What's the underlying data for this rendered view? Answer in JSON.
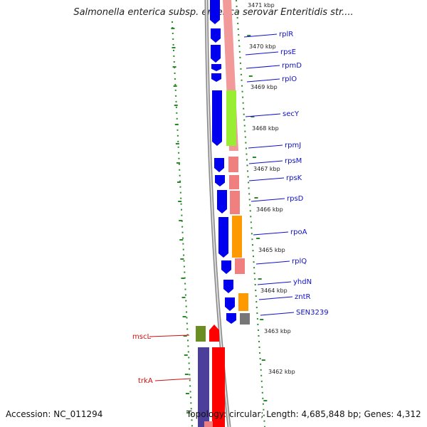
{
  "title": "Salmonella enterica subsp. enterica serovar Enteritidis str....",
  "footer": {
    "accession": "Accession: NC_011294",
    "topology": "Topology: circular; Length: 4,685,848 bp; Genes: 4,312"
  },
  "ticks": [
    "3471 kbp",
    "3470 kbp",
    "3469 kbp",
    "3468 kbp",
    "3467 kbp",
    "3466 kbp",
    "3465 kbp",
    "3464 kbp",
    "3463 kbp",
    "3462 kbp"
  ],
  "genes_forward": [
    {
      "name": "rplR",
      "color": "#f08080"
    },
    {
      "name": "rpsE",
      "color": "#f08080"
    },
    {
      "name": "rpmD",
      "color": "#f08080"
    },
    {
      "name": "rplO",
      "color": "#f08080"
    },
    {
      "name": "secY",
      "color": "#99ee33"
    },
    {
      "name": "rpmJ",
      "color": "#f08080"
    },
    {
      "name": "rpsM",
      "color": "#f08080"
    },
    {
      "name": "rpsK",
      "color": "#f08080"
    },
    {
      "name": "rpsD",
      "color": "#f08080"
    },
    {
      "name": "rpoA",
      "color": "#ff9900"
    },
    {
      "name": "rplQ",
      "color": "#f08080"
    },
    {
      "name": "yhdN",
      "color": "#f08080"
    },
    {
      "name": "zntR",
      "color": "#ff9900"
    },
    {
      "name": "SEN3239",
      "color": "#777777"
    }
  ],
  "genes_reverse": [
    {
      "name": "mscL",
      "color": "#6b8e23"
    },
    {
      "name": "trkA",
      "color": "#4b3f9a"
    }
  ]
}
